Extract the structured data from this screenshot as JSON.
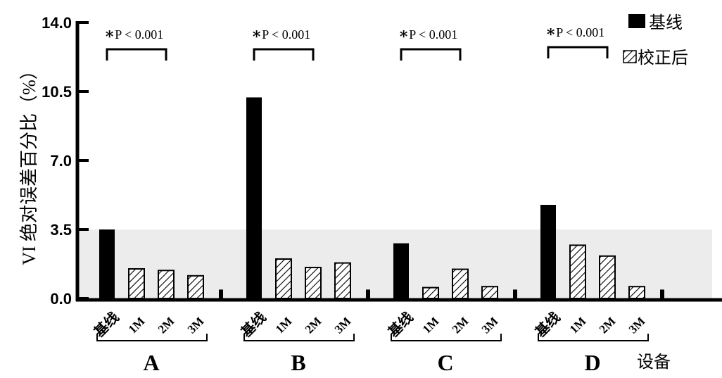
{
  "chart_data": {
    "type": "bar",
    "ylabel": "VI 绝对误差百分比（%）",
    "xlabel": "设备",
    "ylim": [
      0,
      14
    ],
    "yticks": [
      "0.0",
      "3.5",
      "7.0",
      "10.5",
      "14.0"
    ],
    "ytick_values": [
      0,
      3.5,
      7,
      10.5,
      14
    ],
    "shaded_band": [
      0,
      3.5
    ],
    "categories": [
      "基线",
      "1M",
      "2M",
      "3M"
    ],
    "legend": [
      {
        "label": "基线",
        "style": "solid"
      },
      {
        "label": "校正后",
        "style": "hatched"
      }
    ],
    "legend_position": "top-right",
    "groups": [
      {
        "name": "A",
        "values": [
          3.5,
          1.5,
          1.42,
          1.15
        ],
        "annotation": "P < 0.001"
      },
      {
        "name": "B",
        "values": [
          10.2,
          2.0,
          1.57,
          1.8
        ],
        "annotation": "P < 0.001"
      },
      {
        "name": "C",
        "values": [
          2.8,
          0.55,
          1.48,
          0.6
        ],
        "annotation": "P < 0.001"
      },
      {
        "name": "D",
        "values": [
          4.75,
          2.7,
          2.15,
          0.6
        ],
        "annotation": "P < 0.001"
      }
    ],
    "separator_value": 0.45,
    "colors": {
      "baseline": "#000000",
      "band": "#ececec"
    }
  }
}
